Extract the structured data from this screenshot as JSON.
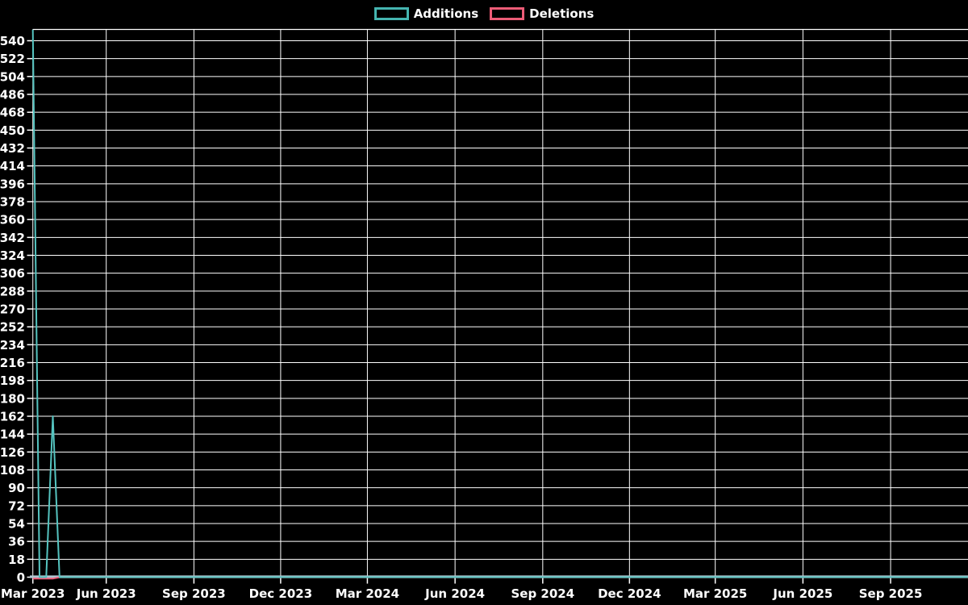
{
  "legend": {
    "items": [
      {
        "label": "Additions",
        "color": "#45b5b0"
      },
      {
        "label": "Deletions",
        "color": "#ec5c77"
      }
    ]
  },
  "chart_data": {
    "type": "line",
    "title": "",
    "xlabel": "",
    "ylabel": "",
    "grid": true,
    "legend_position": "top-center",
    "background_color": "#000000",
    "gridline_color": "#ffffff",
    "axis_line_color": "#b2c8d2",
    "tick_text_color": "#ffffff",
    "y_axis": {
      "min": 0,
      "max_tick": 540,
      "step": 18,
      "top_value": 551,
      "ticks": [
        0,
        18,
        36,
        54,
        72,
        90,
        108,
        126,
        144,
        162,
        180,
        198,
        216,
        234,
        252,
        270,
        288,
        306,
        324,
        342,
        360,
        378,
        396,
        414,
        432,
        450,
        468,
        486,
        504,
        522,
        540
      ]
    },
    "x_axis": {
      "unit": "days since 2023-03-01",
      "ticks": [
        {
          "label": "Mar 2023",
          "day": 15
        },
        {
          "label": "Jun 2023",
          "day": 92
        },
        {
          "label": "Sep 2023",
          "day": 184
        },
        {
          "label": "Dec 2023",
          "day": 275
        },
        {
          "label": "Mar 2024",
          "day": 366
        },
        {
          "label": "Jun 2024",
          "day": 458
        },
        {
          "label": "Sep 2024",
          "day": 550
        },
        {
          "label": "Dec 2024",
          "day": 641
        },
        {
          "label": "Mar 2025",
          "day": 731
        },
        {
          "label": "Jun 2025",
          "day": 823
        },
        {
          "label": "Sep 2025",
          "day": 915
        }
      ]
    },
    "series": [
      {
        "name": "Additions",
        "color": "#55c4c0",
        "points": [
          {
            "day": 15,
            "value": 551
          },
          {
            "day": 22,
            "value": 0
          },
          {
            "day": 29,
            "value": 0
          },
          {
            "day": 36,
            "value": 162
          },
          {
            "day": 43,
            "value": 0
          },
          {
            "day": 996,
            "value": 0
          }
        ]
      },
      {
        "name": "Deletions",
        "color": "#ec5c77",
        "points": [
          {
            "day": 15,
            "value": 2
          },
          {
            "day": 22,
            "value": 2
          },
          {
            "day": 29,
            "value": 2
          },
          {
            "day": 36,
            "value": 2
          },
          {
            "day": 43,
            "value": 0
          },
          {
            "day": 996,
            "value": 0
          }
        ]
      }
    ]
  }
}
